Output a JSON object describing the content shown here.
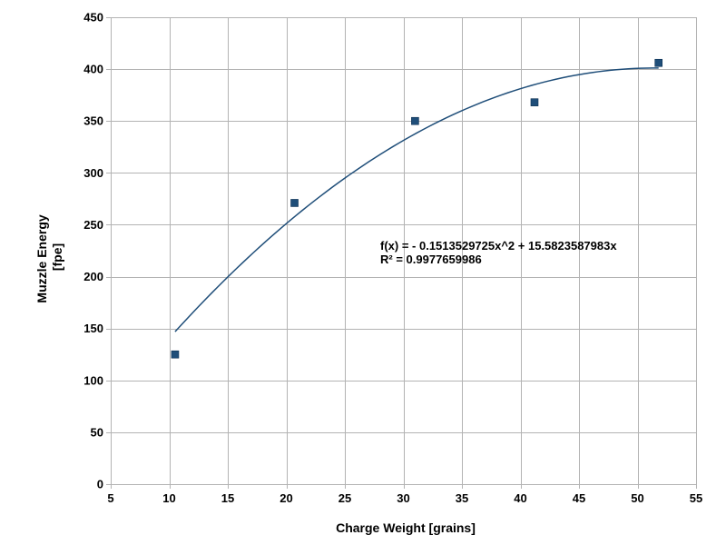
{
  "chart_data": {
    "type": "scatter",
    "xlabel": "Charge Weight [grains]",
    "ylabel_lines": [
      "Muzzle Energy",
      "[fpe]"
    ],
    "xlim": [
      5,
      55
    ],
    "ylim": [
      0,
      450
    ],
    "x_ticks": [
      5,
      10,
      15,
      20,
      25,
      30,
      35,
      40,
      45,
      50,
      55
    ],
    "y_ticks": [
      0,
      50,
      100,
      150,
      200,
      250,
      300,
      350,
      400,
      450
    ],
    "grid": true,
    "series": [
      {
        "points": [
          {
            "x": 10.5,
            "y": 125
          },
          {
            "x": 20.7,
            "y": 271
          },
          {
            "x": 31.0,
            "y": 350
          },
          {
            "x": 41.2,
            "y": 368
          },
          {
            "x": 51.8,
            "y": 406
          }
        ],
        "marker": "square",
        "color": "#1f4e79"
      }
    ],
    "trendline": {
      "type": "polynomial",
      "a2": -0.1513529725,
      "a1": 15.5823587983,
      "x_range": [
        10.5,
        51.8
      ],
      "color": "#1f4e79",
      "equation": "f(x) =  - 0.1513529725x^2 + 15.5823587983x",
      "r_squared": "R² = 0.9977659986"
    }
  }
}
